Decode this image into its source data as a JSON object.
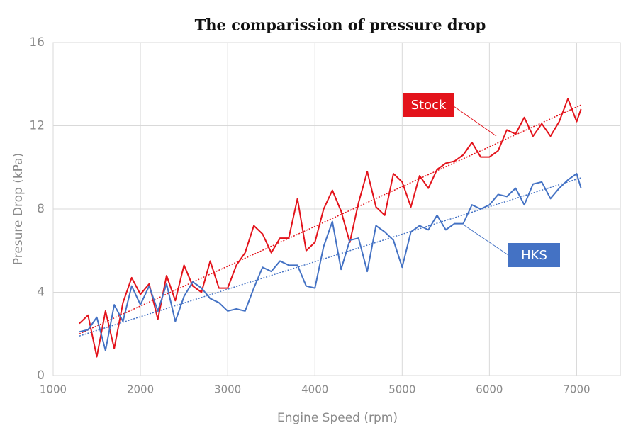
{
  "chart_data": {
    "type": "line",
    "title": "The comparission of pressure drop",
    "x_label": "Engine Speed (rpm)",
    "y_label": "Presure Drop (kPa)",
    "x": [
      1300,
      1400,
      1500,
      1600,
      1700,
      1800,
      1900,
      2000,
      2100,
      2200,
      2300,
      2400,
      2500,
      2600,
      2700,
      2800,
      2900,
      3000,
      3100,
      3200,
      3300,
      3400,
      3500,
      3600,
      3700,
      3800,
      3900,
      4000,
      4100,
      4200,
      4300,
      4400,
      4500,
      4600,
      4700,
      4800,
      4900,
      5000,
      5100,
      5200,
      5300,
      5400,
      5500,
      5600,
      5700,
      5800,
      5900,
      6000,
      6100,
      6200,
      6300,
      6400,
      6500,
      6600,
      6700,
      6800,
      6900,
      7000,
      7050
    ],
    "series": [
      {
        "name": "Stock",
        "color": "#e3131b",
        "values": [
          2.5,
          2.9,
          0.9,
          3.1,
          1.3,
          3.5,
          4.7,
          3.9,
          4.4,
          2.7,
          4.8,
          3.6,
          5.3,
          4.3,
          4.0,
          5.5,
          4.2,
          4.2,
          5.3,
          5.9,
          7.2,
          6.8,
          5.9,
          6.6,
          6.6,
          8.5,
          6.0,
          6.4,
          8.0,
          8.9,
          7.9,
          6.4,
          8.3,
          9.8,
          8.1,
          7.7,
          9.7,
          9.3,
          8.1,
          9.6,
          9.0,
          9.9,
          10.2,
          10.3,
          10.6,
          11.2,
          10.5,
          10.5,
          10.8,
          11.8,
          11.6,
          12.4,
          11.5,
          12.1,
          11.5,
          12.2,
          13.3,
          12.2,
          12.8
        ],
        "trend_x": [
          1300,
          7050
        ],
        "trend": [
          2.0,
          13.0
        ]
      },
      {
        "name": "HKS",
        "color": "#4472c4",
        "values": [
          2.1,
          2.2,
          2.8,
          1.2,
          3.4,
          2.6,
          4.3,
          3.4,
          4.3,
          3.1,
          4.4,
          2.6,
          3.8,
          4.5,
          4.2,
          3.7,
          3.5,
          3.1,
          3.2,
          3.1,
          4.2,
          5.2,
          5.0,
          5.5,
          5.3,
          5.3,
          4.3,
          4.2,
          6.2,
          7.4,
          5.1,
          6.5,
          6.6,
          5.0,
          7.2,
          6.9,
          6.5,
          5.2,
          6.9,
          7.2,
          7.0,
          7.7,
          7.0,
          7.3,
          7.3,
          8.2,
          8.0,
          8.2,
          8.7,
          8.6,
          9.0,
          8.2,
          9.2,
          9.3,
          8.5,
          9.0,
          9.4,
          9.7,
          9.0
        ],
        "trend_x": [
          1300,
          7050
        ],
        "trend": [
          1.9,
          9.5
        ]
      }
    ],
    "xlim": [
      1000,
      7500
    ],
    "xticks": [
      1000,
      2000,
      3000,
      4000,
      5000,
      6000,
      7000
    ],
    "ylim": [
      0,
      16
    ],
    "yticks": [
      0,
      4,
      8,
      12,
      16
    ],
    "grid": true
  }
}
